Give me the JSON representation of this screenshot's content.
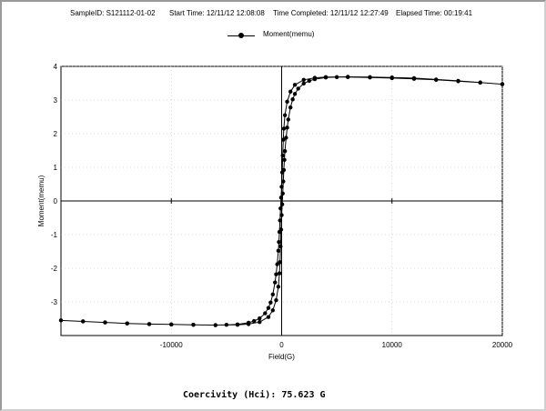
{
  "header": {
    "sample_id": "SampleID: S121112-01-02",
    "start_time": "Start Time: 12/11/12 12:08:08",
    "time_completed": "Time Completed: 12/11/12 12:27:49",
    "elapsed_time": "Elapsed Time:  00:19:41"
  },
  "footer": {
    "coercivity": "Coercivity (Hci): 75.623 G"
  },
  "chart_data": {
    "type": "line",
    "xlabel": "Field(G)",
    "ylabel": "Moment(memu)",
    "xlim": [
      -20000,
      20000
    ],
    "ylim": [
      -4,
      4
    ],
    "x_ticks": [
      -10000,
      0,
      10000,
      20000
    ],
    "x_tick_labels": [
      "-10000",
      "0",
      "10000",
      "20000"
    ],
    "y_ticks": [
      -3,
      -2,
      -1,
      0,
      1,
      2,
      3,
      4
    ],
    "y_tick_labels": [
      "-3",
      "-2",
      "-1",
      "0",
      "1",
      "2",
      "3",
      "4"
    ],
    "grid": true,
    "legend_position": "top-center",
    "color": "#000000",
    "series": [
      {
        "name": "Moment(memu)",
        "x": [
          20000,
          18000,
          16000,
          14000,
          12000,
          10000,
          8000,
          6000,
          5000,
          4000,
          3000,
          2500,
          2000,
          1500,
          1200,
          1000,
          800,
          600,
          500,
          400,
          300,
          250,
          200,
          150,
          100,
          50,
          0,
          -50,
          -100,
          -150,
          -200,
          -300,
          -500,
          -800,
          -1200,
          -2000,
          -3000,
          -4000,
          -6000,
          -8000,
          -10000,
          -12000,
          -14000,
          -16000,
          -18000,
          -20000,
          -18000,
          -16000,
          -14000,
          -12000,
          -10000,
          -8000,
          -6000,
          -5000,
          -4000,
          -3000,
          -2500,
          -2000,
          -1500,
          -1200,
          -1000,
          -800,
          -600,
          -500,
          -400,
          -300,
          -250,
          -200,
          -150,
          -100,
          -50,
          0,
          50,
          100,
          150,
          200,
          300,
          500,
          800,
          1200,
          2000,
          3000,
          4000,
          6000,
          8000,
          10000,
          12000,
          14000,
          16000,
          18000,
          20000
        ],
        "values": [
          3.47,
          3.52,
          3.56,
          3.6,
          3.63,
          3.65,
          3.67,
          3.68,
          3.68,
          3.67,
          3.62,
          3.57,
          3.49,
          3.34,
          3.18,
          3.02,
          2.78,
          2.42,
          2.18,
          1.88,
          1.48,
          1.22,
          0.92,
          0.58,
          0.22,
          -0.1,
          -0.42,
          -0.85,
          -1.35,
          -1.82,
          -2.15,
          -2.55,
          -2.95,
          -3.25,
          -3.45,
          -3.6,
          -3.66,
          -3.68,
          -3.69,
          -3.68,
          -3.67,
          -3.66,
          -3.64,
          -3.61,
          -3.58,
          -3.55,
          -3.58,
          -3.61,
          -3.64,
          -3.66,
          -3.67,
          -3.68,
          -3.69,
          -3.68,
          -3.67,
          -3.62,
          -3.57,
          -3.49,
          -3.34,
          -3.18,
          -3.02,
          -2.78,
          -2.42,
          -2.18,
          -1.88,
          -1.48,
          -1.22,
          -0.92,
          -0.58,
          -0.22,
          0.1,
          0.42,
          0.85,
          1.35,
          1.82,
          2.15,
          2.55,
          2.95,
          3.25,
          3.45,
          3.6,
          3.66,
          3.68,
          3.69,
          3.68,
          3.67,
          3.65,
          3.61,
          3.57,
          3.52,
          3.47
        ]
      }
    ]
  }
}
